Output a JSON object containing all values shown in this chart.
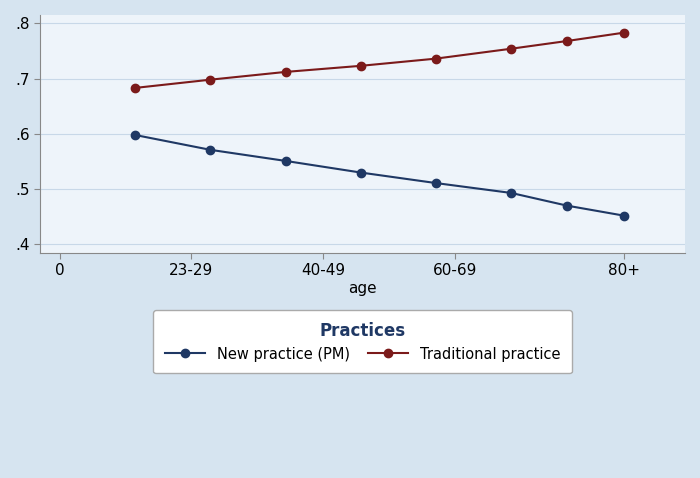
{
  "new_practice_y": [
    0.598,
    0.571,
    0.551,
    0.53,
    0.511,
    0.493,
    0.47,
    0.452
  ],
  "traditional_y": [
    0.683,
    0.698,
    0.712,
    0.723,
    0.736,
    0.754,
    0.768,
    0.783
  ],
  "new_practice_color": "#1f3864",
  "traditional_color": "#7b1a1a",
  "background_color": "#d6e4f0",
  "plot_bg_color": "#eef4fa",
  "ylabel_ticks": [
    0.4,
    0.5,
    0.6,
    0.7,
    0.8
  ],
  "ylabel_tick_labels": [
    ".4",
    ".5",
    ".6",
    ".7",
    ".8"
  ],
  "ylim": [
    0.385,
    0.815
  ],
  "xlim": [
    -0.3,
    9.5
  ],
  "xlabel": "age",
  "legend_title": "Practices",
  "legend_label_new": "New practice (PM)",
  "legend_label_trad": "Traditional practice",
  "marker_size": 6,
  "line_width": 1.5,
  "x_tick_positions": [
    0,
    2.0,
    4.0,
    6.0,
    8.57
  ],
  "x_tick_labels": [
    "0",
    "23-29",
    "40-49",
    "60-69",
    "80+"
  ],
  "data_x": [
    1.14,
    2.29,
    3.43,
    4.57,
    5.71,
    6.86,
    7.71,
    8.57
  ],
  "grid_color": "#c8d8e8",
  "spine_color": "#888888"
}
